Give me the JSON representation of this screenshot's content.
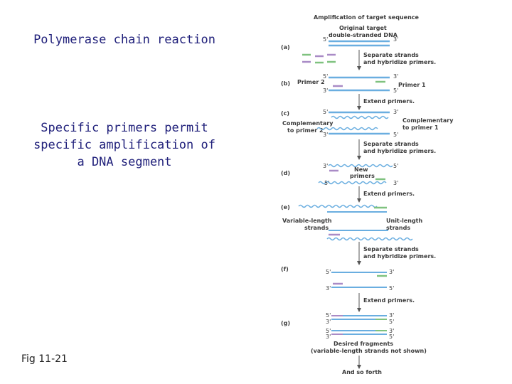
{
  "left": {
    "title": "Polymerase chain reaction",
    "subtitle_lines": [
      "Specific primers permit",
      "specific amplification of",
      "a DNA segment"
    ],
    "fig_label": "Fig 11-21"
  },
  "diagram": {
    "heading": "Amplification of target sequence",
    "original_line1": "Original target",
    "original_line2": "double-stranded DNA",
    "steps": {
      "a": "(a)",
      "b": "(b)",
      "c": "(c)",
      "d": "(d)",
      "e": "(e)",
      "f": "(f)",
      "g": "(g)"
    },
    "prime5": "5'",
    "prime3": "3'",
    "separate1": "Separate strands",
    "separate2": "and hybridize primers.",
    "extend": "Extend primers.",
    "primer1": "Primer 1",
    "primer2": "Primer 2",
    "comp_p1_a": "Complementary",
    "comp_p1_b": "to primer 1",
    "comp_p2_a": "Complementary",
    "comp_p2_b": "to primer 2",
    "new_a": "New",
    "new_b": "primers",
    "var_a": "Variable-length",
    "var_b": "strands",
    "unit_a": "Unit-length",
    "unit_b": "strands",
    "desired1": "Desired fragments",
    "desired2": "(variable-length strands not shown)",
    "so_forth": "And so forth",
    "colors": {
      "strand": "#6aaee0",
      "primer1": "#7fc27f",
      "primer2": "#a98bc6",
      "arrow": "#555555"
    }
  }
}
